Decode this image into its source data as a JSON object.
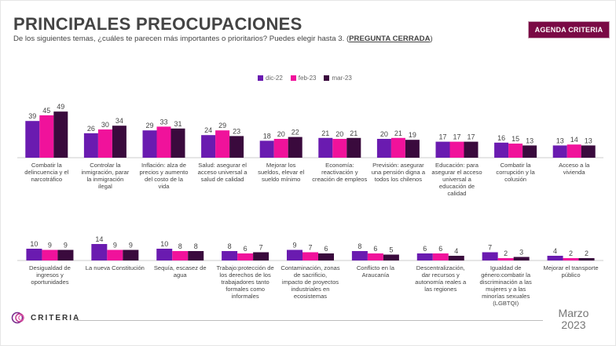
{
  "header": {
    "title": "PRINCIPALES PREOCUPACIONES",
    "subtitle_text": "De los siguientes temas, ¿cuáles te parecen más importantes o prioritarios? Puedes elegir hasta 3. (",
    "subtitle_tag": "PREGUNTA CERRADA",
    "subtitle_close": ")",
    "badge": "AGENDA CRITERIA"
  },
  "colors": {
    "series": [
      "#6a1bb0",
      "#f0129b",
      "#3a0a3d"
    ],
    "badge_bg": "#7a0a45",
    "title": "#444444"
  },
  "chart_data": {
    "type": "bar",
    "title": "Principales preocupaciones",
    "ylabel": "%",
    "series_names": [
      "dic-22",
      "feb-23",
      "mar-23"
    ],
    "categories_row1": [
      "Combatir la delincuencia y el narcotráfico",
      "Controlar la inmigración, parar la inmigración ilegal",
      "Inflación: alza de precios y aumento del costo de la vida",
      "Salud: asegurar el acceso universal a salud de calidad",
      "Mejorar los sueldos, elevar el sueldo mínimo",
      "Economía: reactivación y creación de empleos",
      "Previsión: asegurar una pensión digna a todos los chilenos",
      "Educación: para asegurar el acceso universal a educación de calidad",
      "Combatir la corrupción y la colusión",
      "Acceso a la vivienda"
    ],
    "values_row1": [
      [
        39,
        45,
        49
      ],
      [
        26,
        30,
        34
      ],
      [
        29,
        33,
        31
      ],
      [
        24,
        29,
        23
      ],
      [
        18,
        20,
        22
      ],
      [
        21,
        20,
        21
      ],
      [
        20,
        21,
        19
      ],
      [
        17,
        17,
        17
      ],
      [
        16,
        15,
        13
      ],
      [
        13,
        14,
        13
      ]
    ],
    "categories_row2": [
      "Desigualdad de ingresos y oportunidades",
      "La nueva Constitución",
      "Sequía, escasez de agua",
      "Trabajo:protección de los derechos de los trabajadores tanto formales como informales",
      "Contaminación, zonas de sacrificio, impacto de proyectos industriales en ecosistemas",
      "Conflicto en la Araucanía",
      "Descentralización, dar recursos y autonomía reales a las regiones",
      "Igualdad de género:combatir la discriminación a las mujeres y a las minorías sexuales (LGBTQI)",
      "Mejorar el transporte público"
    ],
    "values_row2": [
      [
        10,
        9,
        9
      ],
      [
        14,
        9,
        9
      ],
      [
        10,
        8,
        8
      ],
      [
        8,
        6,
        7
      ],
      [
        9,
        7,
        6
      ],
      [
        8,
        6,
        5
      ],
      [
        6,
        6,
        4
      ],
      [
        7,
        2,
        3
      ],
      [
        4,
        2,
        2
      ]
    ]
  },
  "footer": {
    "logo": "CRITERIA",
    "date_month": "Marzo",
    "date_year": "2023"
  }
}
